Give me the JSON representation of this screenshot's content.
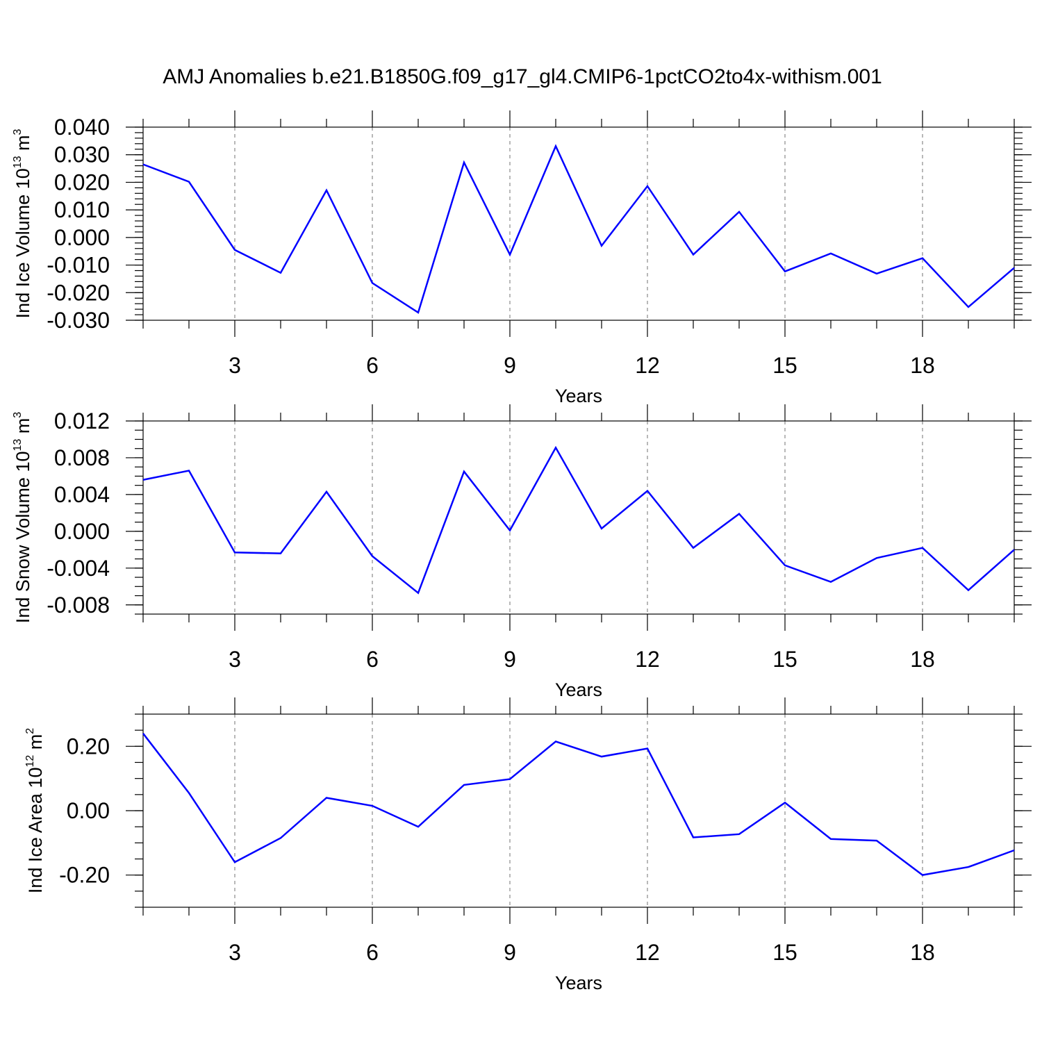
{
  "title": "AMJ Anomalies b.e21.B1850G.f09_g17_gl4.CMIP6-1pctCO2to4x-withism.001",
  "line_color": "#0000ff",
  "chart_data": [
    {
      "type": "line",
      "title": "",
      "xlabel": "Years",
      "ylabel": "Ind Ice Volume 10",
      "ylabel_exponent": "13",
      "ylabel_unit": "m",
      "ylabel_unit_exponent": "3",
      "xlim": [
        1,
        20
      ],
      "ylim": [
        -0.03,
        0.04
      ],
      "xticks": [
        3,
        6,
        9,
        12,
        15,
        18
      ],
      "xtick_labels": [
        "3",
        "6",
        "9",
        "12",
        "15",
        "18"
      ],
      "yticks": [
        -0.03,
        -0.02,
        -0.01,
        0.0,
        0.01,
        0.02,
        0.03,
        0.04
      ],
      "ytick_labels": [
        "-0.030",
        "-0.020",
        "-0.010",
        "0.000",
        "0.010",
        "0.020",
        "0.030",
        "0.040"
      ],
      "y_minor_step": 0.002,
      "grid": "vertical dashed at major x ticks",
      "x": [
        1,
        2,
        3,
        4,
        5,
        6,
        7,
        8,
        9,
        10,
        11,
        12,
        13,
        14,
        15,
        16,
        17,
        18,
        19,
        20
      ],
      "series": [
        {
          "values": [
            0.0265,
            0.0202,
            -0.0045,
            -0.0128,
            0.0171,
            -0.0165,
            -0.0272,
            0.0272,
            -0.0062,
            0.0331,
            -0.003,
            0.0186,
            -0.0062,
            0.0093,
            -0.0123,
            -0.0058,
            -0.0131,
            -0.0075,
            -0.0252,
            -0.011
          ]
        }
      ]
    },
    {
      "type": "line",
      "title": "",
      "xlabel": "Years",
      "ylabel": "Ind Snow Volume 10",
      "ylabel_exponent": "13",
      "ylabel_unit": "m",
      "ylabel_unit_exponent": "3",
      "xlim": [
        1,
        20
      ],
      "ylim": [
        -0.009,
        0.012
      ],
      "xticks": [
        3,
        6,
        9,
        12,
        15,
        18
      ],
      "xtick_labels": [
        "3",
        "6",
        "9",
        "12",
        "15",
        "18"
      ],
      "yticks": [
        -0.008,
        -0.004,
        0.0,
        0.004,
        0.008,
        0.012
      ],
      "ytick_labels": [
        "-0.008",
        "-0.004",
        "0.000",
        "0.004",
        "0.008",
        "0.012"
      ],
      "y_minor_step": 0.001,
      "grid": "vertical dashed at major x ticks",
      "x": [
        1,
        2,
        3,
        4,
        5,
        6,
        7,
        8,
        9,
        10,
        11,
        12,
        13,
        14,
        15,
        16,
        17,
        18,
        19,
        20
      ],
      "series": [
        {
          "values": [
            0.0056,
            0.0066,
            -0.0023,
            -0.0024,
            0.0043,
            -0.0027,
            -0.0067,
            0.0065,
            0.0001,
            0.0091,
            0.0003,
            0.0044,
            -0.0018,
            0.0019,
            -0.0037,
            -0.0055,
            -0.0029,
            -0.0018,
            -0.0064,
            -0.002
          ]
        }
      ]
    },
    {
      "type": "line",
      "title": "",
      "xlabel": "Years",
      "ylabel": "Ind Ice Area 10",
      "ylabel_exponent": "12",
      "ylabel_unit": "m",
      "ylabel_unit_exponent": "2",
      "xlim": [
        1,
        20
      ],
      "ylim": [
        -0.3,
        0.3
      ],
      "xticks": [
        3,
        6,
        9,
        12,
        15,
        18
      ],
      "xtick_labels": [
        "3",
        "6",
        "9",
        "12",
        "15",
        "18"
      ],
      "yticks": [
        -0.2,
        0.0,
        0.2
      ],
      "ytick_labels": [
        "-0.20",
        "0.00",
        "0.20"
      ],
      "y_minor_step": 0.05,
      "grid": "vertical dashed at major x ticks",
      "x": [
        1,
        2,
        3,
        4,
        5,
        6,
        7,
        8,
        9,
        10,
        11,
        12,
        13,
        14,
        15,
        16,
        17,
        18,
        19,
        20
      ],
      "series": [
        {
          "values": [
            0.24,
            0.055,
            -0.16,
            -0.085,
            0.04,
            0.015,
            -0.05,
            0.08,
            0.098,
            0.215,
            0.168,
            0.193,
            -0.083,
            -0.073,
            0.025,
            -0.088,
            -0.093,
            -0.2,
            -0.175,
            -0.123
          ]
        }
      ]
    }
  ]
}
